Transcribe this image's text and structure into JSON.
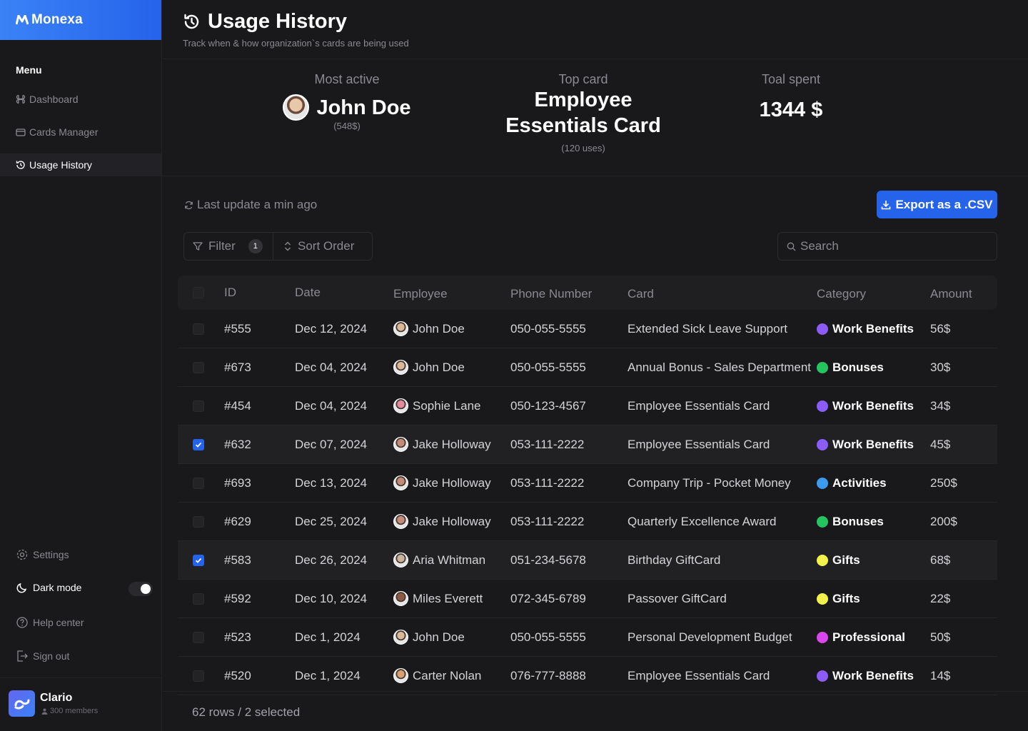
{
  "app": {
    "name": "Monexa"
  },
  "sidebar": {
    "menu_title": "Menu",
    "items": [
      {
        "label": "Dashboard",
        "icon": "command-icon"
      },
      {
        "label": "Cards Manager",
        "icon": "card-icon"
      },
      {
        "label": "Usage History",
        "icon": "history-icon",
        "active": true
      }
    ],
    "bottom": {
      "settings": "Settings",
      "dark_mode": "Dark mode",
      "dark_mode_on": true,
      "help": "Help center",
      "sign_out": "Sign out"
    },
    "org": {
      "name": "Clario",
      "members": "300 members"
    }
  },
  "header": {
    "title": "Usage History",
    "subtitle": "Track when & how organization`s cards are being used"
  },
  "stats": {
    "most_active": {
      "label": "Most active",
      "name": "John Doe",
      "amount": "(548$)"
    },
    "top_card": {
      "label": "Top card",
      "line1": "Employee",
      "line2": "Essentials Card",
      "uses": "(120 uses)"
    },
    "total_spent": {
      "label": "Toal spent",
      "value": "1344 $"
    }
  },
  "toolbar": {
    "last_update": "Last update a min ago",
    "export_label": "Export as a .CSV",
    "filter_label": "Filter",
    "filter_count": "1",
    "sort_label": "Sort Order",
    "search_placeholder": "Search"
  },
  "table": {
    "columns": [
      "ID",
      "Date",
      "Employee",
      "Phone Number",
      "Card",
      "Category",
      "Amount"
    ],
    "rows": [
      {
        "id": "#555",
        "date": "Dec 12, 2024",
        "employee": "John Doe",
        "phone": "050-055-5555",
        "card": "Extended Sick Leave Support",
        "category": "Work Benefits",
        "amount": "56$",
        "selected": false
      },
      {
        "id": "#673",
        "date": "Dec 04, 2024",
        "employee": "John Doe",
        "phone": "050-055-5555",
        "card": "Annual Bonus - Sales Department",
        "category": "Bonuses",
        "amount": "30$",
        "selected": false
      },
      {
        "id": "#454",
        "date": "Dec 04, 2024",
        "employee": "Sophie Lane",
        "phone": "050-123-4567",
        "card": "Employee Essentials Card",
        "category": "Work Benefits",
        "amount": "34$",
        "selected": false
      },
      {
        "id": "#632",
        "date": "Dec 07, 2024",
        "employee": "Jake Holloway",
        "phone": "053-111-2222",
        "card": "Employee Essentials Card",
        "category": "Work Benefits",
        "amount": "45$",
        "selected": true
      },
      {
        "id": "#693",
        "date": "Dec 13, 2024",
        "employee": "Jake Holloway",
        "phone": "053-111-2222",
        "card": "Company Trip - Pocket Money",
        "category": "Activities",
        "amount": "250$",
        "selected": false
      },
      {
        "id": "#629",
        "date": "Dec 25, 2024",
        "employee": "Jake Holloway",
        "phone": "053-111-2222",
        "card": "Quarterly Excellence Award",
        "category": "Bonuses",
        "amount": "200$",
        "selected": false
      },
      {
        "id": "#583",
        "date": "Dec 26, 2024",
        "employee": "Aria Whitman",
        "phone": "051-234-5678",
        "card": "Birthday GiftCard",
        "category": "Gifts",
        "amount": "68$",
        "selected": true
      },
      {
        "id": "#592",
        "date": "Dec 10, 2024",
        "employee": "Miles Everett",
        "phone": "072-345-6789",
        "card": "Passover GiftCard",
        "category": "Gifts",
        "amount": "22$",
        "selected": false
      },
      {
        "id": "#523",
        "date": "Dec 1, 2024",
        "employee": "John Doe",
        "phone": "050-055-5555",
        "card": "Personal Development Budget",
        "category": "Professional",
        "amount": "50$",
        "selected": false
      },
      {
        "id": "#520",
        "date": "Dec 1, 2024",
        "employee": "Carter Nolan",
        "phone": "076-777-8888",
        "card": "Employee Essentials Card",
        "category": "Work Benefits",
        "amount": "14$",
        "selected": false
      }
    ]
  },
  "category_colors": {
    "Work Benefits": "#8b5cf6",
    "Bonuses": "#22c55e",
    "Activities": "#3b9bf0",
    "Gifts": "#f2f24a",
    "Professional": "#d946ef"
  },
  "avatar_colors": {
    "John Doe": "#d9b89a",
    "Sophie Lane": "#e38aa0",
    "Jake Holloway": "#c48b7a",
    "Aria Whitman": "#c9b39c",
    "Miles Everett": "#8a5a44",
    "Carter Nolan": "#d8a070"
  },
  "footer": {
    "summary": "62 rows / 2 selected"
  }
}
